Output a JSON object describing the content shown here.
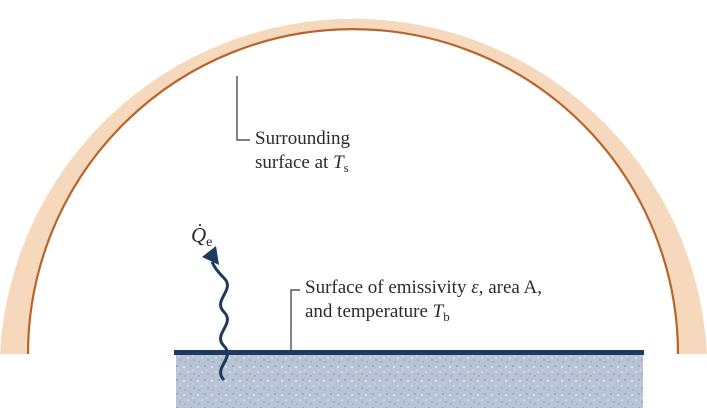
{
  "surroundings": {
    "line1": "Surrounding",
    "line2_prefix": "surface at ",
    "temp_symbol": "T",
    "temp_subscript": "s"
  },
  "body_surface": {
    "line1_prefix": "Surface of emissivity ",
    "emissivity_symbol": "ε",
    "line1_suffix": ", area A,",
    "line2_prefix": "and temperature ",
    "temp_symbol": "T",
    "temp_subscript": "b"
  },
  "emission": {
    "symbol": "Q",
    "dot": "·",
    "subscript": "e"
  },
  "colors": {
    "dome_fill": "#f6d9bd",
    "dome_inner_edge": "#b8652a",
    "plate": "#1f3a5f",
    "base_fill": "#b9c3d6",
    "arrow": "#1f3a5f",
    "leader": "#333333"
  }
}
